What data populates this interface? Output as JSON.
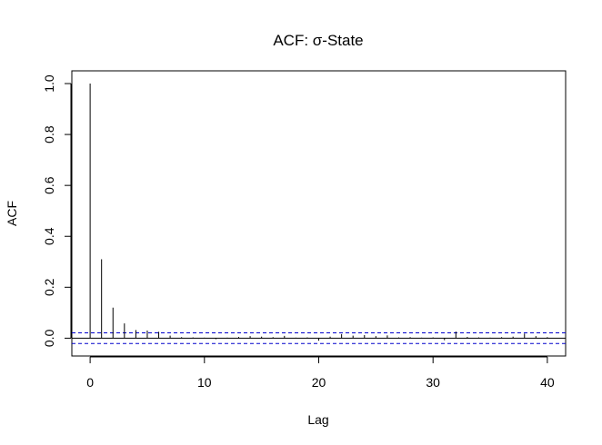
{
  "chart_data": {
    "type": "bar",
    "title": "ACF: σ-State",
    "xlabel": "Lag",
    "ylabel": "ACF",
    "xlim": [
      -1.6,
      41.6
    ],
    "ylim": [
      -0.07,
      1.05
    ],
    "x_ticks": [
      0,
      10,
      20,
      30,
      40
    ],
    "y_ticks": [
      0.0,
      0.2,
      0.4,
      0.6,
      0.8,
      1.0
    ],
    "x_tick_labels": [
      "0",
      "10",
      "20",
      "30",
      "40"
    ],
    "y_tick_labels": [
      "0.0",
      "0.2",
      "0.4",
      "0.6",
      "0.8",
      "1.0"
    ],
    "confidence_bound": 0.021,
    "grid": false,
    "colors": {
      "spike": "#000000",
      "bound": "#0000cc",
      "axes": "#000000"
    },
    "x": [
      0,
      1,
      2,
      3,
      4,
      5,
      6,
      7,
      8,
      9,
      10,
      11,
      12,
      13,
      14,
      15,
      16,
      17,
      18,
      19,
      20,
      21,
      22,
      23,
      24,
      25,
      26,
      27,
      28,
      29,
      30,
      31,
      32,
      33,
      34,
      35,
      36,
      37,
      38,
      39,
      40
    ],
    "values": [
      1.0,
      0.31,
      0.12,
      0.058,
      0.032,
      0.03,
      0.025,
      0.01,
      0.004,
      0.003,
      0.002,
      -0.004,
      0.002,
      0.005,
      0.008,
      0.006,
      0.004,
      0.009,
      0.002,
      0.003,
      -0.01,
      0.006,
      0.016,
      0.01,
      0.012,
      0.008,
      0.011,
      0.003,
      0.004,
      0.002,
      0.003,
      -0.008,
      0.026,
      0.005,
      0.003,
      0.002,
      0.004,
      0.006,
      0.018,
      0.008,
      0.004
    ]
  }
}
